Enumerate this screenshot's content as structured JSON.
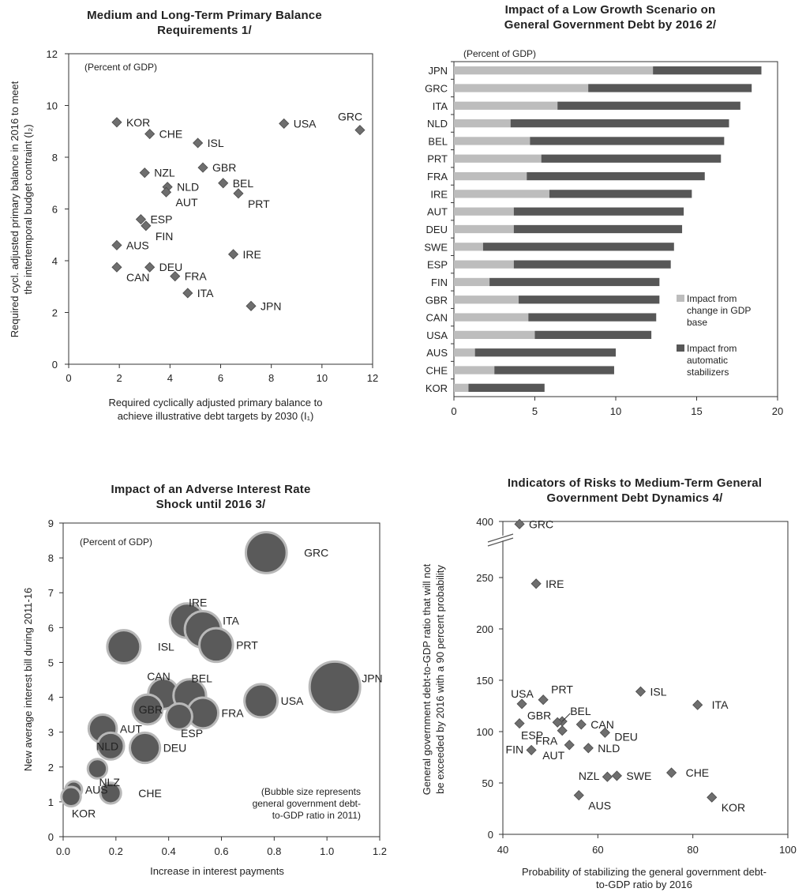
{
  "colors": {
    "marker": "#6e6e6e",
    "marker_stroke": "#4a4a4a",
    "bar_light": "#bdbdbd",
    "bar_dark": "#575757",
    "bubble_fill": "#5a5a5a",
    "bubble_stroke": "#b8b8b8",
    "text": "#222222"
  },
  "chart_data": [
    {
      "type": "scatter",
      "title": "Medium and Long-Term Primary Balance Requirements 1/",
      "title_lines": [
        "Medium and Long-Term Primary Balance",
        "Requirements 1/"
      ],
      "note": "(Percent of GDP)",
      "xlabel": "Required cyclically adjusted primary balance to achieve illustrative debt targets by 2030 (I₁)",
      "xlabel_lines": [
        "Required cyclically adjusted primary balance to",
        "achieve illustrative debt targets by 2030 (I₁)"
      ],
      "ylabel": "Required cycl. adjusted primary balance in 2016 to meet the intertemporal budget contraint (I₂)",
      "ylabel_lines": [
        "Required cycl. adjusted primary balance in 2016 to meet",
        "the intertemporal budget contraint (I₂)"
      ],
      "xlim": [
        0,
        12
      ],
      "ylim": [
        0,
        12
      ],
      "xticks": [
        0,
        2,
        4,
        6,
        8,
        10,
        12
      ],
      "yticks": [
        0,
        2,
        4,
        6,
        8,
        10,
        12
      ],
      "grid": false,
      "points": [
        {
          "label": "KOR",
          "x": 1.9,
          "y": 9.35,
          "pos": "right"
        },
        {
          "label": "CHE",
          "x": 3.2,
          "y": 8.9,
          "pos": "right"
        },
        {
          "label": "ISL",
          "x": 5.1,
          "y": 8.55,
          "pos": "right"
        },
        {
          "label": "USA",
          "x": 8.5,
          "y": 9.3,
          "pos": "right"
        },
        {
          "label": "GRC",
          "x": 11.5,
          "y": 9.05,
          "pos": "above-left"
        },
        {
          "label": "NZL",
          "x": 3.0,
          "y": 7.4,
          "pos": "right"
        },
        {
          "label": "GBR",
          "x": 5.3,
          "y": 7.6,
          "pos": "right"
        },
        {
          "label": "NLD",
          "x": 3.9,
          "y": 6.85,
          "pos": "right"
        },
        {
          "label": "AUT",
          "x": 3.85,
          "y": 6.65,
          "pos": "below-right"
        },
        {
          "label": "BEL",
          "x": 6.1,
          "y": 7.0,
          "pos": "right"
        },
        {
          "label": "PRT",
          "x": 6.7,
          "y": 6.6,
          "pos": "below-right"
        },
        {
          "label": "ESP",
          "x": 2.85,
          "y": 5.6,
          "pos": "right"
        },
        {
          "label": "FIN",
          "x": 3.05,
          "y": 5.35,
          "pos": "below-right"
        },
        {
          "label": "AUS",
          "x": 1.9,
          "y": 4.6,
          "pos": "right"
        },
        {
          "label": "IRE",
          "x": 6.5,
          "y": 4.25,
          "pos": "right"
        },
        {
          "label": "CAN",
          "x": 1.9,
          "y": 3.75,
          "pos": "below-right"
        },
        {
          "label": "DEU",
          "x": 3.2,
          "y": 3.75,
          "pos": "right"
        },
        {
          "label": "FRA",
          "x": 4.2,
          "y": 3.4,
          "pos": "right"
        },
        {
          "label": "ITA",
          "x": 4.7,
          "y": 2.75,
          "pos": "right"
        },
        {
          "label": "JPN",
          "x": 7.2,
          "y": 2.25,
          "pos": "right"
        }
      ]
    },
    {
      "type": "bar",
      "orientation": "horizontal",
      "stacked": true,
      "title": "Impact of a Low Growth Scenario on General Government Debt by 2016 2/",
      "title_lines": [
        "Impact of a Low Growth Scenario on",
        "General Government Debt by 2016 2/"
      ],
      "note": "(Percent of GDP)",
      "categories": [
        "JPN",
        "GRC",
        "ITA",
        "NLD",
        "BEL",
        "PRT",
        "FRA",
        "IRE",
        "AUT",
        "DEU",
        "SWE",
        "ESP",
        "FIN",
        "GBR",
        "CAN",
        "USA",
        "AUS",
        "CHE",
        "KOR"
      ],
      "series": [
        {
          "name": "Impact from change in GDP base",
          "legend_lines": [
            "Impact from",
            "change in GDP",
            "base"
          ],
          "values": [
            12.3,
            8.3,
            6.4,
            3.5,
            4.7,
            5.4,
            4.5,
            5.9,
            3.7,
            3.7,
            1.8,
            3.7,
            2.2,
            4.0,
            4.6,
            5.0,
            1.3,
            2.5,
            0.9
          ]
        },
        {
          "name": "Impact from automatic stabilizers",
          "legend_lines": [
            "Impact from",
            "automatic",
            "stabilizers"
          ],
          "values": [
            6.7,
            10.1,
            11.3,
            13.5,
            12.0,
            11.1,
            11.0,
            8.8,
            10.5,
            10.4,
            11.8,
            9.7,
            10.5,
            8.7,
            7.9,
            7.2,
            8.7,
            7.4,
            4.7
          ]
        }
      ],
      "xlim": [
        0,
        20
      ],
      "xticks": [
        0,
        5,
        10,
        15,
        20
      ],
      "grid": false,
      "legend_position": "bottom-right"
    },
    {
      "type": "scatter",
      "subtype": "bubble",
      "title": "Impact of an Adverse Interest Rate Shock until 2016 3/",
      "title_lines": [
        "Impact of an Adverse Interest Rate",
        "Shock until 2016 3/"
      ],
      "note": "(Percent of GDP)",
      "xlabel": "Increase in interest payments",
      "ylabel": "New average interest bill during 2011-16",
      "bubble_note_lines": [
        "(Bubble size represents",
        "general government debt-",
        "to-GDP ratio in 2011)"
      ],
      "xlim": [
        0,
        1.2
      ],
      "ylim": [
        0,
        9
      ],
      "xticks": [
        "0.0",
        "0.2",
        "0.4",
        "0.6",
        "0.8",
        "1.0",
        "1.2"
      ],
      "yticks": [
        0,
        1,
        2,
        3,
        4,
        5,
        6,
        7,
        8,
        9
      ],
      "grid": false,
      "points": [
        {
          "label": "GRC",
          "x": 0.77,
          "y": 8.15,
          "size": 152,
          "pos": "right-far"
        },
        {
          "label": "IRE",
          "x": 0.47,
          "y": 6.2,
          "size": 108,
          "pos": "above-right"
        },
        {
          "label": "ITA",
          "x": 0.53,
          "y": 5.95,
          "size": 120,
          "pos": "right-up"
        },
        {
          "label": "PRT",
          "x": 0.58,
          "y": 5.5,
          "size": 103,
          "pos": "right"
        },
        {
          "label": "ISL",
          "x": 0.23,
          "y": 5.45,
          "size": 100,
          "pos": "right-far"
        },
        {
          "label": "JPN",
          "x": 1.03,
          "y": 4.3,
          "size": 233,
          "pos": "right-up"
        },
        {
          "label": "USA",
          "x": 0.75,
          "y": 3.9,
          "size": 100,
          "pos": "right"
        },
        {
          "label": "CAN",
          "x": 0.38,
          "y": 4.1,
          "size": 84,
          "pos": "above"
        },
        {
          "label": "BEL",
          "x": 0.48,
          "y": 4.05,
          "size": 97,
          "pos": "above-right"
        },
        {
          "label": "GBR",
          "x": 0.32,
          "y": 3.65,
          "size": 81,
          "pos": "left"
        },
        {
          "label": "FRA",
          "x": 0.53,
          "y": 3.55,
          "size": 86,
          "pos": "right"
        },
        {
          "label": "ESP",
          "x": 0.44,
          "y": 3.45,
          "size": 61,
          "pos": "below-right"
        },
        {
          "label": "AUT",
          "x": 0.15,
          "y": 3.1,
          "size": 72,
          "pos": "right"
        },
        {
          "label": "NLD",
          "x": 0.18,
          "y": 2.6,
          "size": 65,
          "pos": "center"
        },
        {
          "label": "DEU",
          "x": 0.31,
          "y": 2.55,
          "size": 83,
          "pos": "right"
        },
        {
          "label": "NLZ",
          "x": 0.13,
          "y": 1.95,
          "size": 34,
          "pos": "below-right"
        },
        {
          "label": "AUS",
          "x": 0.04,
          "y": 1.35,
          "size": 25,
          "pos": "right"
        },
        {
          "label": "KOR",
          "x": 0.03,
          "y": 1.15,
          "size": 34,
          "pos": "below"
        },
        {
          "label": "CHE",
          "x": 0.18,
          "y": 1.25,
          "size": 39,
          "pos": "right-far"
        }
      ]
    },
    {
      "type": "scatter",
      "title": "Indicators of Risks to Medium-Term General Government Debt Dynamics 4/",
      "title_lines": [
        "Indicators of Risks to Medium-Term General",
        "Government Debt Dynamics 4/"
      ],
      "xlabel": "Probability of stabilizing the general government debt-to-GDP ratio by 2016",
      "xlabel_lines": [
        "Probability of stabilizing the general government debt-",
        "to-GDP ratio by 2016"
      ],
      "ylabel": "General government debt-to-GDP ratio that will not be exceeded by 2016 with a 90 percent probability",
      "ylabel_lines": [
        "General government debt-to-GDP ratio that will not",
        "be exceeded by 2016 with a 90 percent probability"
      ],
      "xlim": [
        40,
        100
      ],
      "ylim": [
        0,
        400
      ],
      "axis_break": "between 250 and 400",
      "xticks": [
        40,
        60,
        80,
        100
      ],
      "yticks": [
        0,
        50,
        100,
        150,
        200,
        250,
        400
      ],
      "grid": false,
      "points": [
        {
          "label": "GRC",
          "x": 43.5,
          "y": 393,
          "pos": "right"
        },
        {
          "label": "IRE",
          "x": 47,
          "y": 244,
          "pos": "right"
        },
        {
          "label": "USA",
          "x": 44,
          "y": 127,
          "pos": "above"
        },
        {
          "label": "PRT",
          "x": 48.5,
          "y": 131,
          "pos": "above-right"
        },
        {
          "label": "ISL",
          "x": 69,
          "y": 139,
          "pos": "right"
        },
        {
          "label": "ITA",
          "x": 81,
          "y": 126,
          "pos": "right-far"
        },
        {
          "label": "BEL",
          "x": 52.5,
          "y": 110,
          "pos": "above-right"
        },
        {
          "label": "GBR",
          "x": 51.5,
          "y": 109,
          "pos": "left-up"
        },
        {
          "label": "CAN",
          "x": 56.5,
          "y": 107,
          "pos": "right"
        },
        {
          "label": "ESP",
          "x": 43.5,
          "y": 108,
          "pos": "below"
        },
        {
          "label": "FRA",
          "x": 52.5,
          "y": 101,
          "pos": "below-left"
        },
        {
          "label": "DEU",
          "x": 61.5,
          "y": 99,
          "pos": "right-down"
        },
        {
          "label": "FIN",
          "x": 46,
          "y": 82,
          "pos": "left"
        },
        {
          "label": "AUT",
          "x": 54,
          "y": 87,
          "pos": "below-left"
        },
        {
          "label": "NLD",
          "x": 58,
          "y": 84,
          "pos": "right"
        },
        {
          "label": "NZL",
          "x": 62,
          "y": 56,
          "pos": "left"
        },
        {
          "label": "SWE",
          "x": 64,
          "y": 57,
          "pos": "right"
        },
        {
          "label": "CHE",
          "x": 75.5,
          "y": 60,
          "pos": "right-far"
        },
        {
          "label": "AUS",
          "x": 56,
          "y": 38,
          "pos": "below-right"
        },
        {
          "label": "KOR",
          "x": 84,
          "y": 36,
          "pos": "below-right"
        }
      ]
    }
  ]
}
